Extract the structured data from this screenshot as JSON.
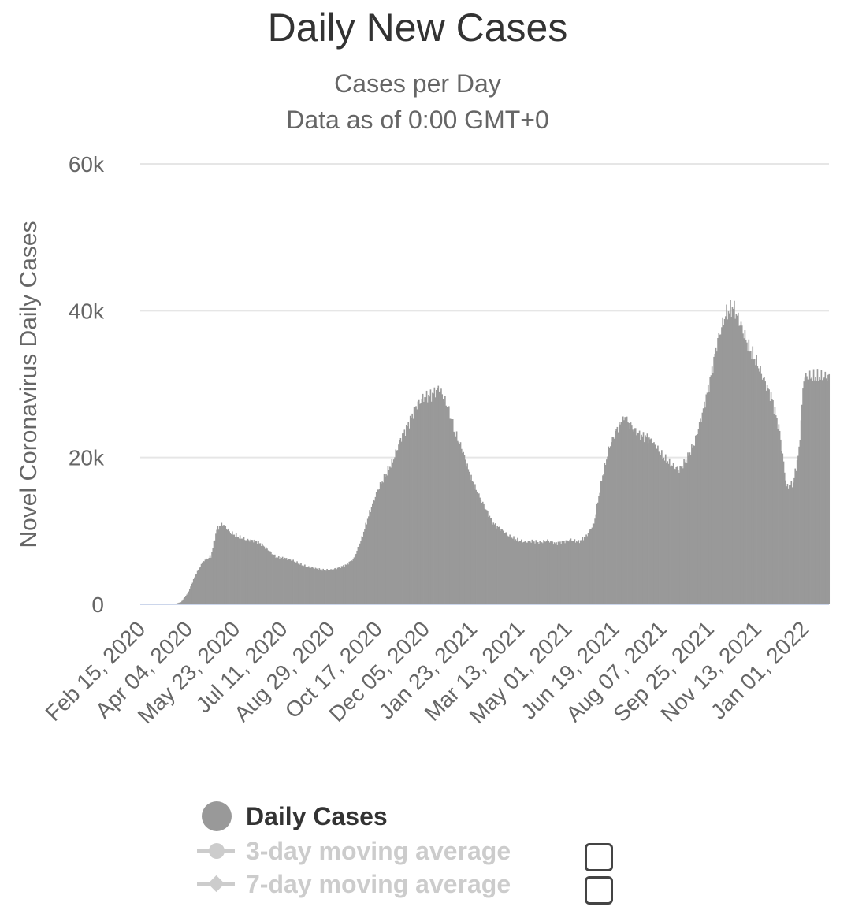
{
  "chart_data": {
    "type": "area",
    "title": "Daily New Cases",
    "subtitle": [
      "Cases per Day",
      "Data as of 0:00 GMT+0"
    ],
    "xlabel": "",
    "ylabel": "Novel Coronavirus Daily Cases",
    "x_start": "Feb 15, 2020",
    "x_end": "Jan 27, 2022",
    "xticks": [
      "Feb 15, 2020",
      "Apr 04, 2020",
      "May 23, 2020",
      "Jul 11, 2020",
      "Aug 29, 2020",
      "Oct 17, 2020",
      "Dec 05, 2020",
      "Jan 23, 2021",
      "Mar 13, 2021",
      "May 01, 2021",
      "Jun 19, 2021",
      "Aug 07, 2021",
      "Sep 25, 2021",
      "Nov 13, 2021",
      "Jan 01, 2022"
    ],
    "yticks": [
      "0",
      "20k",
      "40k",
      "60k"
    ],
    "ylim": [
      0,
      60000
    ],
    "grid": true,
    "series": [
      {
        "name": "Daily Cases",
        "color": "#999999",
        "points": [
          [
            "Feb 15, 2020",
            0
          ],
          [
            "Mar 20, 2020",
            0
          ],
          [
            "Mar 28, 2020",
            300
          ],
          [
            "Apr 04, 2020",
            1500
          ],
          [
            "Apr 12, 2020",
            4000
          ],
          [
            "Apr 20, 2020",
            5900
          ],
          [
            "Apr 28, 2020",
            6500
          ],
          [
            "May 04, 2020",
            10200
          ],
          [
            "May 10, 2020",
            11000
          ],
          [
            "May 18, 2020",
            9800
          ],
          [
            "May 26, 2020",
            9200
          ],
          [
            "Jun 03, 2020",
            8800
          ],
          [
            "Jun 11, 2020",
            8700
          ],
          [
            "Jun 19, 2020",
            8200
          ],
          [
            "Jun 27, 2020",
            7300
          ],
          [
            "Jul 05, 2020",
            6400
          ],
          [
            "Jul 13, 2020",
            6300
          ],
          [
            "Jul 21, 2020",
            6000
          ],
          [
            "Jul 29, 2020",
            5500
          ],
          [
            "Aug 06, 2020",
            5100
          ],
          [
            "Aug 14, 2020",
            4900
          ],
          [
            "Aug 22, 2020",
            4700
          ],
          [
            "Aug 30, 2020",
            4700
          ],
          [
            "Sep 07, 2020",
            5000
          ],
          [
            "Sep 15, 2020",
            5400
          ],
          [
            "Sep 23, 2020",
            6300
          ],
          [
            "Oct 01, 2020",
            9000
          ],
          [
            "Oct 09, 2020",
            12500
          ],
          [
            "Oct 17, 2020",
            15500
          ],
          [
            "Oct 25, 2020",
            17500
          ],
          [
            "Nov 02, 2020",
            19500
          ],
          [
            "Nov 10, 2020",
            22500
          ],
          [
            "Nov 18, 2020",
            24500
          ],
          [
            "Nov 26, 2020",
            27000
          ],
          [
            "Dec 04, 2020",
            28200
          ],
          [
            "Dec 12, 2020",
            28500
          ],
          [
            "Dec 20, 2020",
            29500
          ],
          [
            "Dec 28, 2020",
            27000
          ],
          [
            "Jan 05, 2021",
            23500
          ],
          [
            "Jan 13, 2021",
            21000
          ],
          [
            "Jan 21, 2021",
            17500
          ],
          [
            "Jan 29, 2021",
            15000
          ],
          [
            "Feb 06, 2021",
            13000
          ],
          [
            "Feb 14, 2021",
            11000
          ],
          [
            "Feb 22, 2021",
            10200
          ],
          [
            "Mar 02, 2021",
            9300
          ],
          [
            "Mar 10, 2021",
            8800
          ],
          [
            "Mar 18, 2021",
            8500
          ],
          [
            "Mar 26, 2021",
            8600
          ],
          [
            "Apr 03, 2021",
            8400
          ],
          [
            "Apr 11, 2021",
            8700
          ],
          [
            "Apr 19, 2021",
            8300
          ],
          [
            "Apr 27, 2021",
            8500
          ],
          [
            "May 05, 2021",
            8800
          ],
          [
            "May 13, 2021",
            8500
          ],
          [
            "May 21, 2021",
            9300
          ],
          [
            "May 29, 2021",
            11000
          ],
          [
            "Jun 06, 2021",
            17000
          ],
          [
            "Jun 14, 2021",
            21500
          ],
          [
            "Jun 22, 2021",
            24000
          ],
          [
            "Jun 30, 2021",
            25300
          ],
          [
            "Jul 08, 2021",
            24000
          ],
          [
            "Jul 16, 2021",
            23000
          ],
          [
            "Jul 24, 2021",
            22700
          ],
          [
            "Aug 01, 2021",
            21500
          ],
          [
            "Aug 09, 2021",
            20000
          ],
          [
            "Aug 17, 2021",
            19000
          ],
          [
            "Aug 25, 2021",
            18300
          ],
          [
            "Sep 02, 2021",
            19800
          ],
          [
            "Sep 10, 2021",
            22000
          ],
          [
            "Sep 18, 2021",
            26000
          ],
          [
            "Sep 26, 2021",
            30500
          ],
          [
            "Oct 04, 2021",
            36000
          ],
          [
            "Oct 12, 2021",
            39500
          ],
          [
            "Oct 20, 2021",
            40500
          ],
          [
            "Oct 28, 2021",
            38000
          ],
          [
            "Nov 05, 2021",
            35000
          ],
          [
            "Nov 13, 2021",
            33000
          ],
          [
            "Nov 21, 2021",
            30500
          ],
          [
            "Nov 29, 2021",
            28000
          ],
          [
            "Dec 07, 2021",
            23500
          ],
          [
            "Dec 14, 2021",
            16000
          ],
          [
            "Dec 21, 2021",
            16500
          ],
          [
            "Dec 27, 2021",
            21000
          ],
          [
            "Jan 01, 2022",
            31000
          ]
        ]
      }
    ],
    "legend": {
      "position": "bottom",
      "items": [
        {
          "label": "Daily Cases",
          "active": true
        },
        {
          "label": "3-day moving average",
          "active": false,
          "checked": false
        },
        {
          "label": "7-day moving average",
          "active": false,
          "checked": false
        }
      ]
    }
  }
}
